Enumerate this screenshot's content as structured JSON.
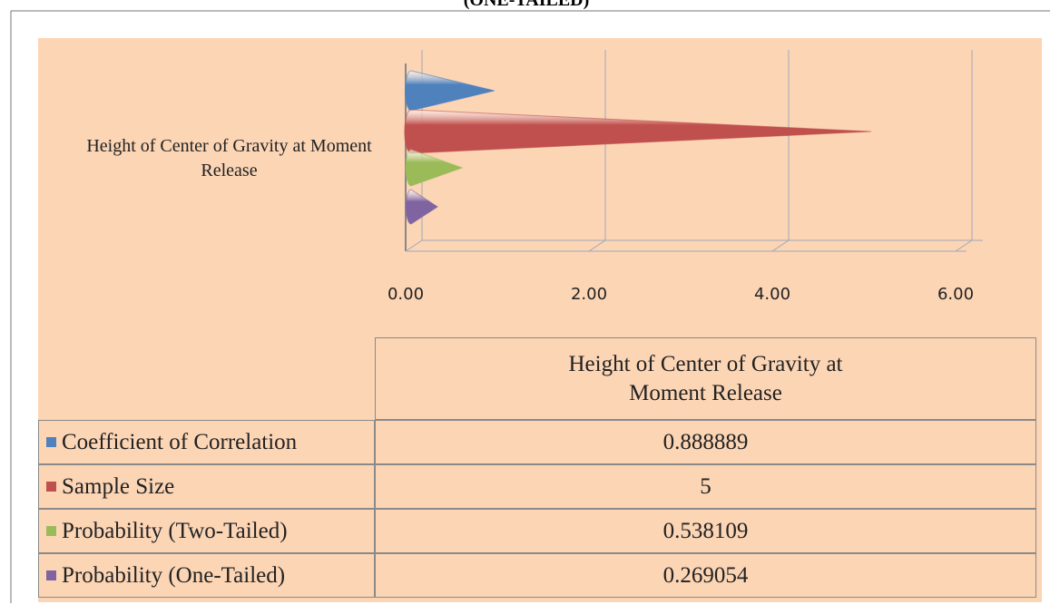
{
  "chart_data": {
    "type": "bar3d_cone",
    "title": "(ONE-TAILED)",
    "categories": [
      "Height of Center of Gravity at Moment Release"
    ],
    "series": [
      {
        "name": "Coefficient of Correlation",
        "color": "#4f81bd",
        "values": [
          0.888889
        ]
      },
      {
        "name": "Sample Size",
        "color": "#c0504d",
        "values": [
          5
        ]
      },
      {
        "name": "Probability (Two-Tailed)",
        "color": "#9bbb59",
        "values": [
          0.538109
        ]
      },
      {
        "name": "Probability (One-Tailed)",
        "color": "#8064a2",
        "values": [
          0.269054
        ]
      }
    ],
    "xlim": [
      0,
      6
    ],
    "xticks": [
      {
        "value": 0,
        "label": "0.00"
      },
      {
        "value": 2,
        "label": "2.00"
      },
      {
        "value": 4,
        "label": "4.00"
      },
      {
        "value": 6,
        "label": "6.00"
      }
    ],
    "grid": true,
    "data_table": true
  }
}
